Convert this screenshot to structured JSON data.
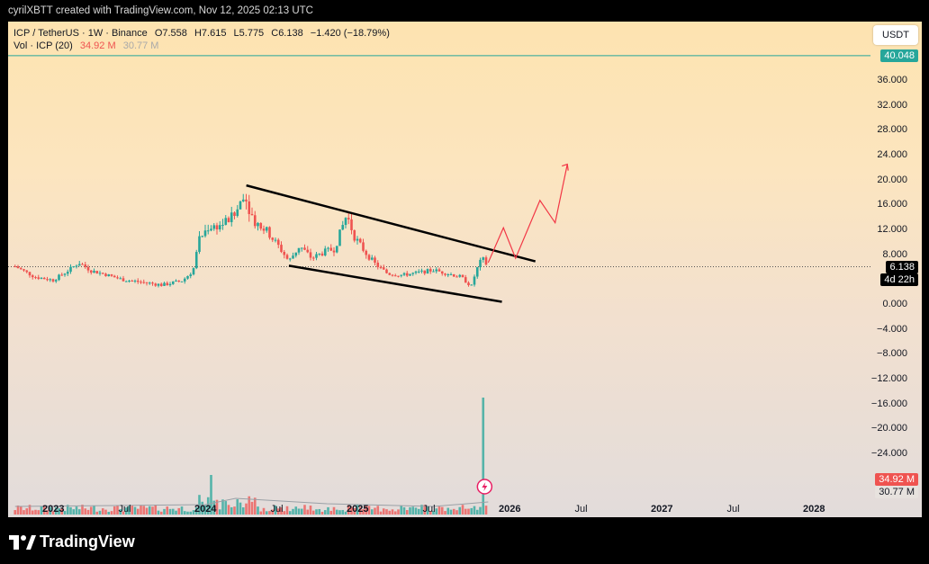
{
  "credit": "cyrilXBTT created with TradingView.com, Nov 12, 2025 02:13 UTC",
  "legend": {
    "symbol": "ICP / TetherUS · 1W · Binance",
    "open": "O7.558",
    "high": "H7.615",
    "low": "L5.775",
    "close": "C6.138",
    "change": "−1.420 (−18.79%)",
    "vol_label": "Vol · ICP (20)",
    "vol_value": "34.92 M",
    "vol_ma": "30.77 M"
  },
  "quote_button": "USDT",
  "price_tags": {
    "top": "40.048",
    "price": "6.138",
    "countdown": "4d 22h",
    "volume": "34.92 M",
    "volume_ma": "30.77 M"
  },
  "footer_logo": "TradingView",
  "colors": {
    "up": "#26a69a",
    "down": "#ef5350",
    "trendline": "#000000",
    "projection": "#f23645",
    "top_line": "#26a69a"
  },
  "chart_data": {
    "type": "candlestick",
    "interval": "1W",
    "y_axis": {
      "ticks": [
        "40.048",
        "36.000",
        "32.000",
        "28.000",
        "24.000",
        "20.000",
        "16.000",
        "12.000",
        "8.000",
        "0.000",
        "−4.000",
        "−8.000",
        "−12.000",
        "−16.000",
        "−20.000",
        "−24.000"
      ],
      "ylim": [
        -30,
        41
      ]
    },
    "x_axis": {
      "labels": [
        "2023",
        "Jul",
        "2024",
        "Jul",
        "2025",
        "Jul",
        "2026",
        "Jul",
        "2027",
        "Jul",
        "2028"
      ],
      "bold": [
        "2023",
        "2024",
        "2025",
        "2026",
        "2027",
        "2028"
      ]
    },
    "last_price": 6.138,
    "top_line": 40.048,
    "price_path": [
      [
        2022.75,
        6.2
      ],
      [
        2022.88,
        4.5
      ],
      [
        2023.0,
        4.0
      ],
      [
        2023.08,
        5.2
      ],
      [
        2023.17,
        6.8
      ],
      [
        2023.25,
        5.5
      ],
      [
        2023.33,
        5.0
      ],
      [
        2023.45,
        4.1
      ],
      [
        2023.6,
        3.6
      ],
      [
        2023.72,
        3.2
      ],
      [
        2023.85,
        3.9
      ],
      [
        2023.92,
        5.5
      ],
      [
        2023.96,
        10.5
      ],
      [
        2024.02,
        12.5
      ],
      [
        2024.1,
        12.8
      ],
      [
        2024.2,
        14.5
      ],
      [
        2024.25,
        18.0
      ],
      [
        2024.32,
        13.5
      ],
      [
        2024.4,
        12.0
      ],
      [
        2024.48,
        9.5
      ],
      [
        2024.55,
        7.0
      ],
      [
        2024.62,
        9.5
      ],
      [
        2024.7,
        7.5
      ],
      [
        2024.78,
        8.5
      ],
      [
        2024.85,
        9.0
      ],
      [
        2024.9,
        12.5
      ],
      [
        2024.93,
        14.5
      ],
      [
        2024.98,
        11.0
      ],
      [
        2025.05,
        8.5
      ],
      [
        2025.12,
        6.5
      ],
      [
        2025.2,
        5.0
      ],
      [
        2025.3,
        4.8
      ],
      [
        2025.4,
        5.2
      ],
      [
        2025.5,
        5.6
      ],
      [
        2025.6,
        5.0
      ],
      [
        2025.68,
        4.5
      ],
      [
        2025.75,
        3.0
      ],
      [
        2025.78,
        5.5
      ],
      [
        2025.82,
        7.5
      ],
      [
        2025.86,
        6.138
      ]
    ],
    "volume_spike": {
      "x": 2025.82,
      "value_rel": 1.0
    },
    "trendlines": [
      {
        "name": "upper",
        "points": [
          [
            2024.27,
            19.2
          ],
          [
            2026.17,
            7.0
          ]
        ]
      },
      {
        "name": "lower",
        "points": [
          [
            2024.55,
            6.3
          ],
          [
            2025.95,
            0.5
          ]
        ]
      }
    ],
    "projection": [
      [
        2025.86,
        6.8
      ],
      [
        2025.96,
        12.4
      ],
      [
        2026.04,
        7.5
      ],
      [
        2026.2,
        16.8
      ],
      [
        2026.3,
        13.2
      ],
      [
        2026.38,
        22.6
      ]
    ]
  }
}
